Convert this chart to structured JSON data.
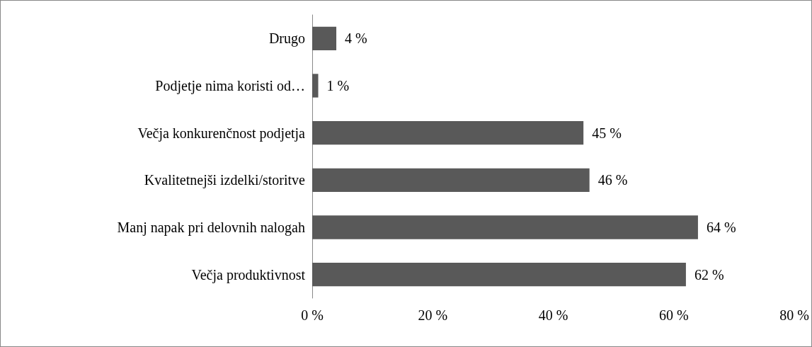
{
  "chart_data": {
    "type": "bar",
    "orientation": "horizontal",
    "categories": [
      "Drugo",
      "Podjetje nima koristi od…",
      "Večja konkurenčnost podjetja",
      "Kvalitetnejši izdelki/storitve",
      "Manj napak pri delovnih nalogah",
      "Večja produktivnost"
    ],
    "values": [
      4,
      1,
      45,
      46,
      64,
      62
    ],
    "value_labels": [
      "4 %",
      "1 %",
      "45 %",
      "46 %",
      "64 %",
      "62 %"
    ],
    "color": "#595959",
    "xlim": [
      0,
      80
    ],
    "xticks": [
      {
        "value": 0,
        "label": "0 %"
      },
      {
        "value": 20,
        "label": "20 %"
      },
      {
        "value": 40,
        "label": "40 %"
      },
      {
        "value": 60,
        "label": "60 %"
      },
      {
        "value": 80,
        "label": "80 %"
      }
    ],
    "grid": false
  }
}
